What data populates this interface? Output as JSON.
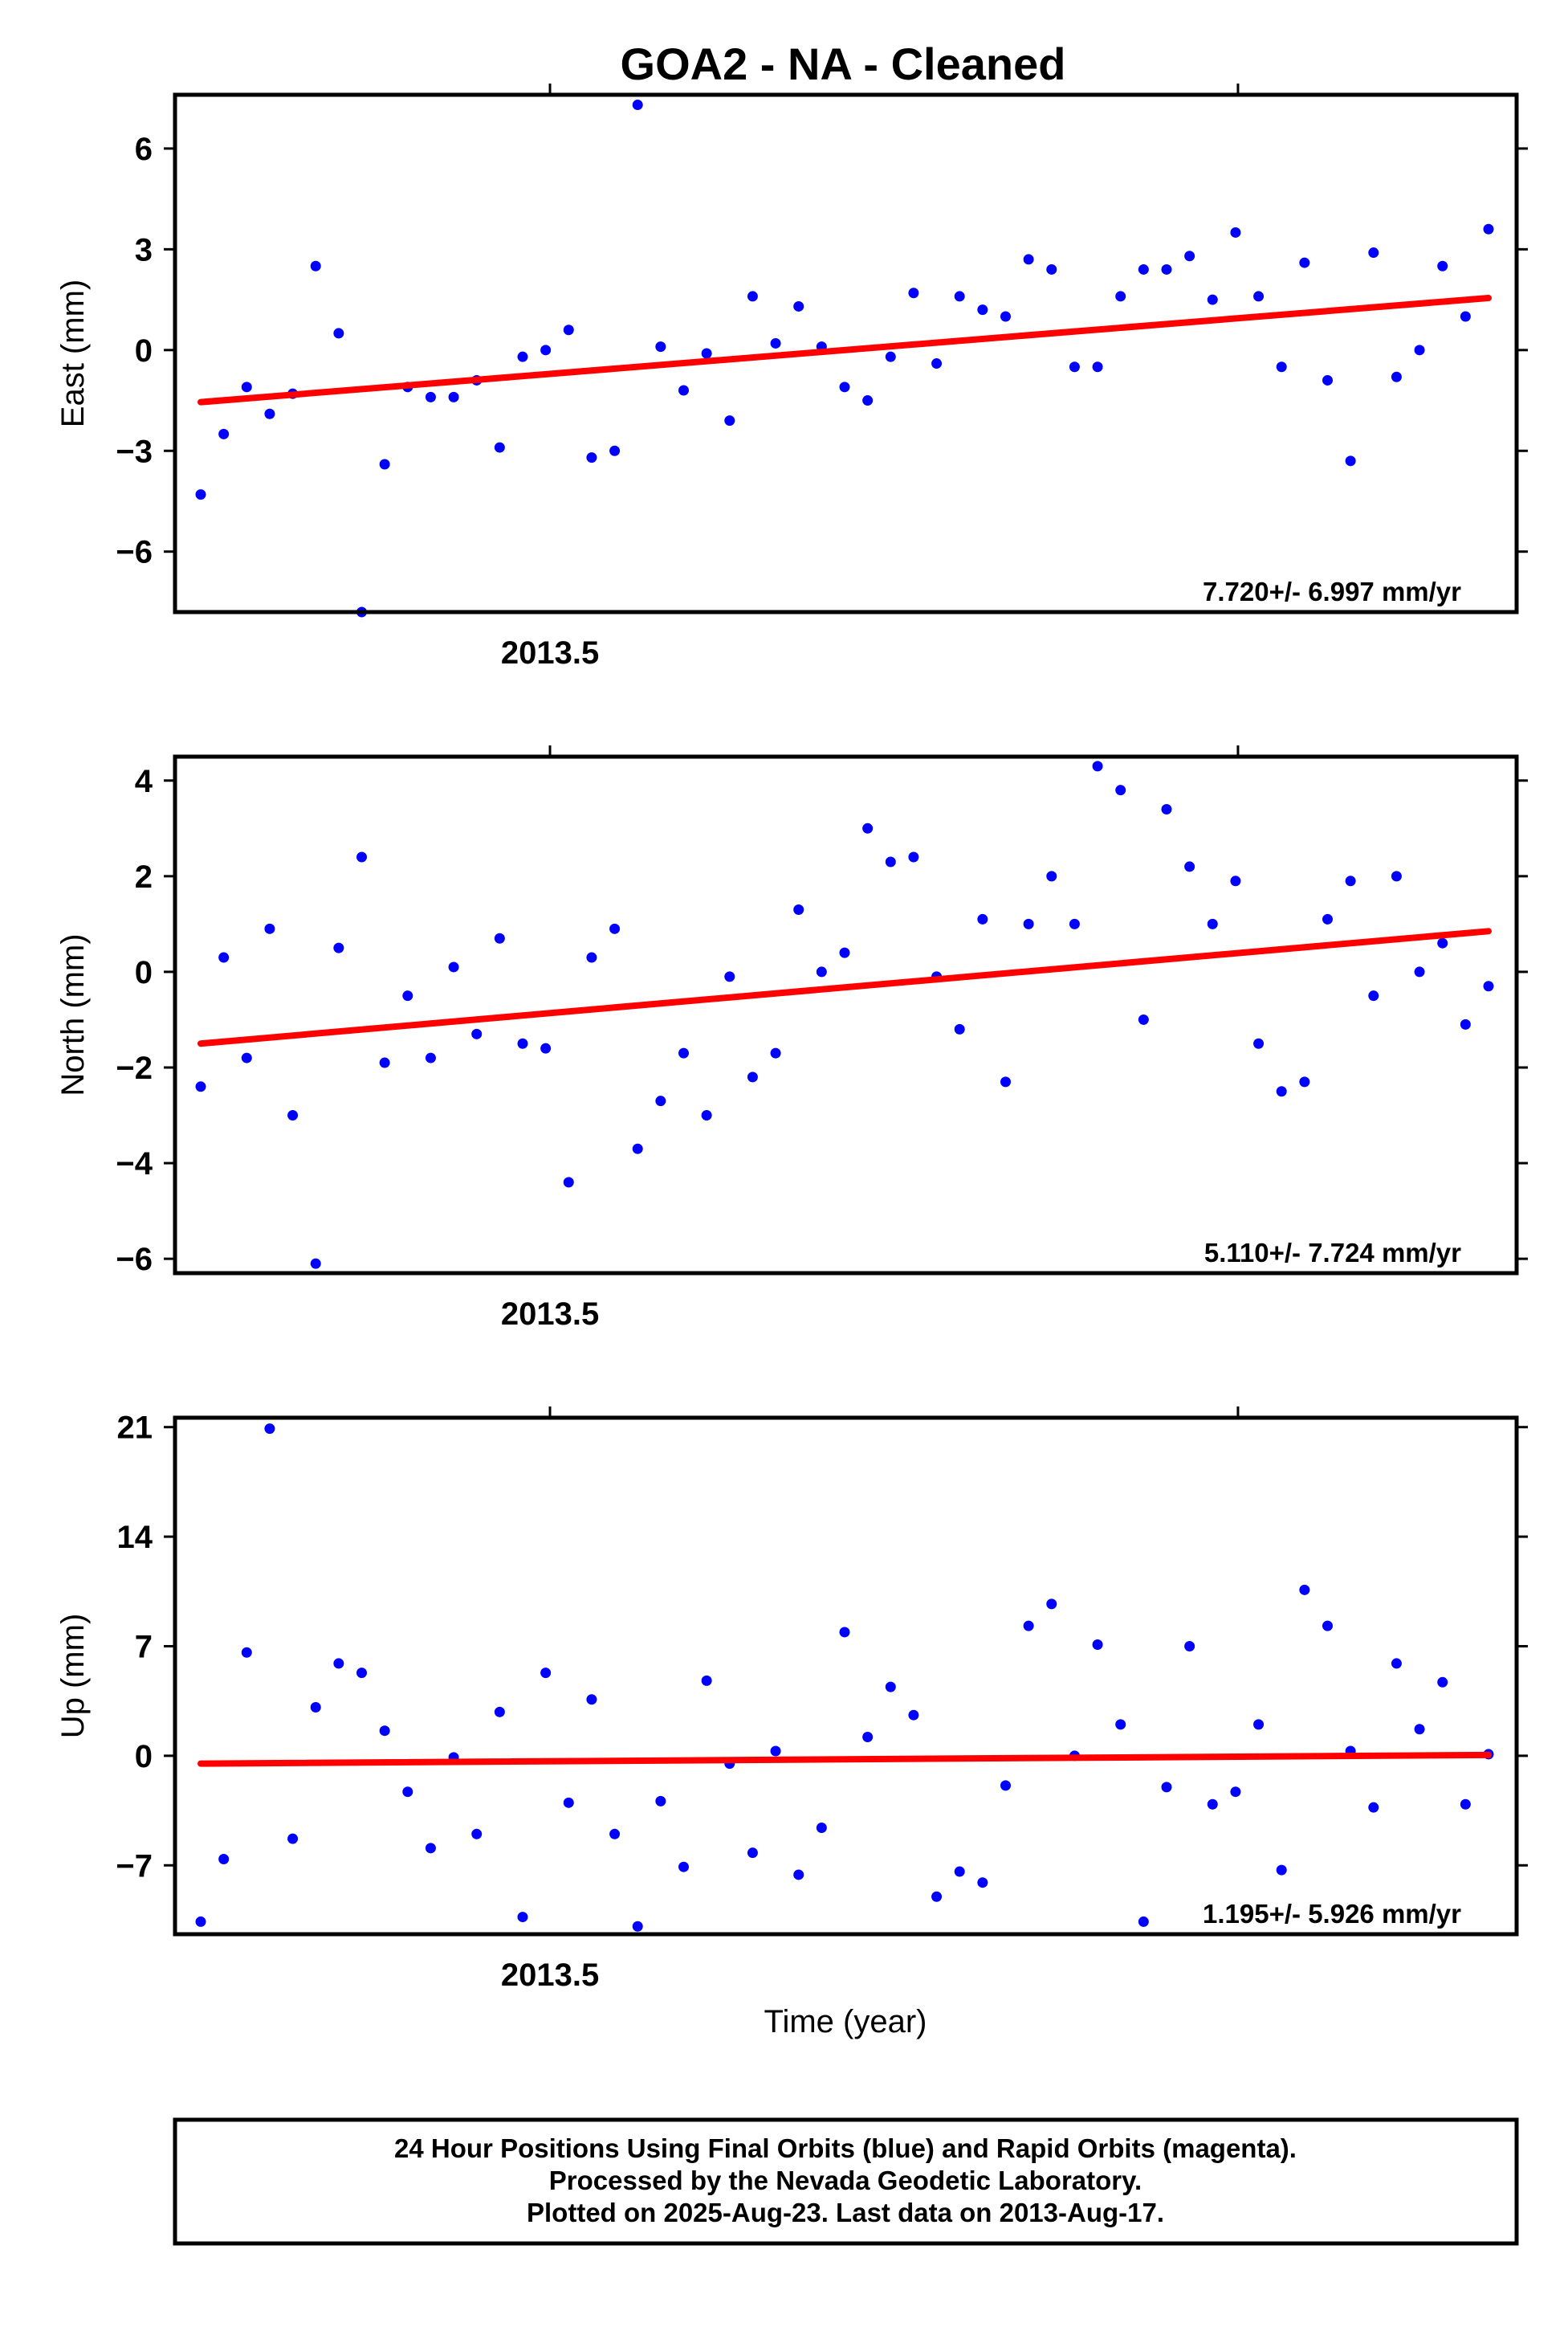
{
  "title": "GOA2  - NA - Cleaned",
  "xlabel": "Time (year)",
  "footer": [
    "24 Hour Positions Using Final Orbits (blue) and Rapid Orbits (magenta).",
    "Processed by the Nevada Geodetic Laboratory.",
    "Plotted on 2025-Aug-23. Last data on 2013-Aug-17."
  ],
  "colors": {
    "points": "#0000ff",
    "trend": "#ff0000",
    "axes": "#000000"
  },
  "chart_data": [
    {
      "type": "scatter",
      "ylabel": "East (mm)",
      "rate_text": "7.720+/- 6.997 mm/yr",
      "xlim": [
        2013.4455,
        2013.6405
      ],
      "ylim": [
        -7.8,
        7.6
      ],
      "x_tick_labels": [
        {
          "value": 2013.5,
          "label": "2013.5"
        }
      ],
      "x_ticks_unlabeled": [
        2013.6
      ],
      "y_ticks": [
        {
          "value": -6,
          "label": "−6"
        },
        {
          "value": -3,
          "label": "−3"
        },
        {
          "value": 0,
          "label": "0"
        },
        {
          "value": 3,
          "label": "3"
        },
        {
          "value": 6,
          "label": "6"
        }
      ],
      "trend": {
        "start": -1.55,
        "end": 1.55
      },
      "series": [
        {
          "points": [
            -4.3,
            -2.5,
            -1.1,
            -1.9,
            -1.3,
            2.5,
            0.5,
            -7.8,
            -3.4,
            -1.1,
            -1.4,
            -1.4,
            -0.9,
            -2.9,
            -0.2,
            0.0,
            0.6,
            -3.2,
            -3.0,
            7.3,
            0.1,
            -1.2,
            -0.1,
            -2.1,
            1.6,
            0.2,
            1.3,
            0.1,
            -1.1,
            -1.5,
            -0.2,
            1.7,
            -0.4,
            1.6,
            1.2,
            1.0,
            2.7,
            2.4,
            -0.5,
            -0.5,
            1.6,
            2.4,
            2.4,
            2.8,
            1.5,
            3.5,
            1.6,
            -0.5,
            2.6,
            -0.9,
            -3.3,
            2.9,
            -0.8,
            0.0,
            2.5,
            1.0,
            3.6
          ]
        }
      ]
    },
    {
      "type": "scatter",
      "ylabel": "North (mm)",
      "rate_text": "5.110+/- 7.724 mm/yr",
      "xlim": [
        2013.4455,
        2013.6405
      ],
      "ylim": [
        -6.3,
        4.5
      ],
      "x_tick_labels": [
        {
          "value": 2013.5,
          "label": "2013.5"
        }
      ],
      "x_ticks_unlabeled": [
        2013.6
      ],
      "y_ticks": [
        {
          "value": -6,
          "label": "−6"
        },
        {
          "value": -4,
          "label": "−4"
        },
        {
          "value": -2,
          "label": "−2"
        },
        {
          "value": 0,
          "label": "0"
        },
        {
          "value": 2,
          "label": "2"
        },
        {
          "value": 4,
          "label": "4"
        }
      ],
      "trend": {
        "start": -1.5,
        "end": 0.85
      },
      "series": [
        {
          "points": [
            -2.4,
            0.3,
            -1.8,
            0.9,
            -3.0,
            -6.1,
            0.5,
            2.4,
            -1.9,
            -0.5,
            -1.8,
            0.1,
            -1.3,
            0.7,
            -1.5,
            -1.6,
            -4.4,
            0.3,
            0.9,
            -3.7,
            -2.7,
            -1.7,
            -3.0,
            -0.1,
            -2.2,
            -1.7,
            1.3,
            0.0,
            0.4,
            3.0,
            2.3,
            2.4,
            -0.1,
            -1.2,
            1.1,
            -2.3,
            1.0,
            2.0,
            1.0,
            4.3,
            3.8,
            -1.0,
            3.4,
            2.2,
            1.0,
            1.9,
            -1.5,
            -2.5,
            -2.3,
            1.1,
            1.9,
            -0.5,
            2.0,
            0.0,
            0.6,
            -1.1,
            -0.3
          ]
        }
      ]
    },
    {
      "type": "scatter",
      "ylabel": "Up (mm)",
      "rate_text": "1.195+/- 5.926 mm/yr",
      "xlim": [
        2013.4455,
        2013.6405
      ],
      "ylim": [
        -11.4,
        21.6
      ],
      "x_tick_labels": [
        {
          "value": 2013.5,
          "label": "2013.5"
        }
      ],
      "x_ticks_unlabeled": [
        2013.6
      ],
      "y_ticks": [
        {
          "value": -7,
          "label": "−7"
        },
        {
          "value": 0,
          "label": "0"
        },
        {
          "value": 7,
          "label": "7"
        },
        {
          "value": 14,
          "label": "14"
        },
        {
          "value": 21,
          "label": "21"
        }
      ],
      "trend": {
        "start": -0.5,
        "end": 0.05
      },
      "series": [
        {
          "points": [
            -10.6,
            -6.6,
            6.6,
            20.9,
            -5.3,
            3.1,
            5.9,
            5.3,
            1.6,
            -2.3,
            -5.9,
            -0.1,
            -5.0,
            2.8,
            -10.3,
            5.3,
            -3.0,
            3.6,
            -5.0,
            -10.9,
            -2.9,
            -7.1,
            4.8,
            -0.5,
            -6.2,
            0.3,
            -7.6,
            -4.6,
            7.9,
            1.2,
            4.4,
            2.6,
            -9.0,
            -7.4,
            -8.1,
            -1.9,
            8.3,
            9.7,
            0.0,
            7.1,
            2.0,
            -10.6,
            -2.0,
            7.0,
            -3.1,
            -2.3,
            2.0,
            -7.3,
            10.6,
            8.3,
            0.3,
            -3.3,
            5.9,
            1.7,
            4.7,
            -3.1,
            0.1
          ]
        }
      ]
    }
  ]
}
